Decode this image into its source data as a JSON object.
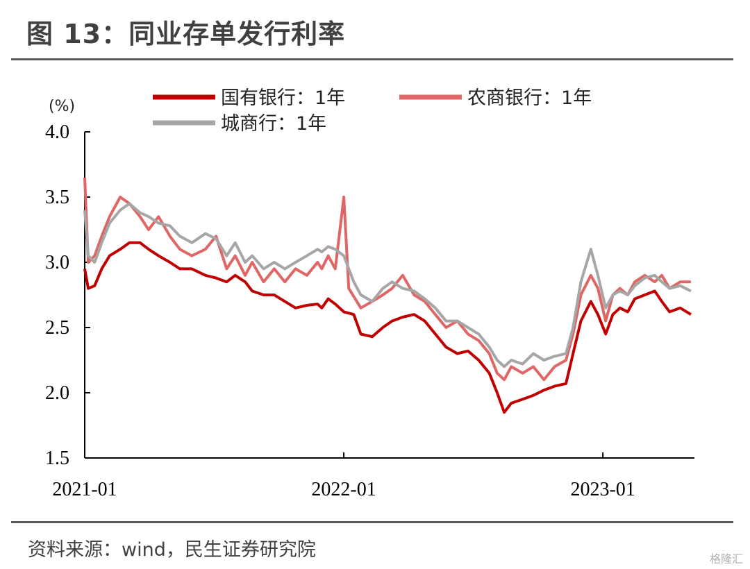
{
  "page": {
    "title": "图 13：同业存单发行利率",
    "source": "资料来源：wind，民生证券研究院",
    "watermark": "格隆汇"
  },
  "chart_data": {
    "type": "line",
    "title": "图 13：同业存单发行利率",
    "ylabel": "(%)",
    "xlabel": "",
    "ylim": [
      1.5,
      4.0
    ],
    "yticks": [
      1.5,
      2.0,
      2.5,
      3.0,
      3.5,
      4.0
    ],
    "ytick_labels": [
      "1.5",
      "2.0",
      "2.5",
      "3.0",
      "3.5",
      "4.0"
    ],
    "xlim": [
      "2021-01-01",
      "2023-05-10"
    ],
    "xticks": [
      "2021-01",
      "2022-01",
      "2023-01"
    ],
    "grid": false,
    "legend_position": "top",
    "series": [
      {
        "name": "国有银行：1年",
        "color": "#c00000",
        "points": [
          [
            "2021-01-01",
            2.95
          ],
          [
            "2021-01-06",
            2.8
          ],
          [
            "2021-01-15",
            2.82
          ],
          [
            "2021-01-25",
            2.95
          ],
          [
            "2021-02-05",
            3.05
          ],
          [
            "2021-02-20",
            3.1
          ],
          [
            "2021-03-05",
            3.15
          ],
          [
            "2021-03-20",
            3.15
          ],
          [
            "2021-04-01",
            3.1
          ],
          [
            "2021-04-15",
            3.05
          ],
          [
            "2021-05-01",
            3.0
          ],
          [
            "2021-05-15",
            2.95
          ],
          [
            "2021-06-01",
            2.95
          ],
          [
            "2021-06-20",
            2.9
          ],
          [
            "2021-07-05",
            2.88
          ],
          [
            "2021-07-20",
            2.85
          ],
          [
            "2021-08-01",
            2.9
          ],
          [
            "2021-08-15",
            2.85
          ],
          [
            "2021-08-25",
            2.78
          ],
          [
            "2021-09-10",
            2.75
          ],
          [
            "2021-09-25",
            2.75
          ],
          [
            "2021-10-10",
            2.7
          ],
          [
            "2021-10-25",
            2.65
          ],
          [
            "2021-11-10",
            2.67
          ],
          [
            "2021-11-25",
            2.68
          ],
          [
            "2021-12-01",
            2.65
          ],
          [
            "2021-12-10",
            2.72
          ],
          [
            "2021-12-20",
            2.68
          ],
          [
            "2022-01-01",
            2.62
          ],
          [
            "2022-01-15",
            2.6
          ],
          [
            "2022-01-25",
            2.45
          ],
          [
            "2022-02-10",
            2.43
          ],
          [
            "2022-02-25",
            2.5
          ],
          [
            "2022-03-10",
            2.55
          ],
          [
            "2022-03-25",
            2.58
          ],
          [
            "2022-04-10",
            2.6
          ],
          [
            "2022-04-25",
            2.55
          ],
          [
            "2022-05-10",
            2.45
          ],
          [
            "2022-05-25",
            2.35
          ],
          [
            "2022-06-10",
            2.3
          ],
          [
            "2022-06-25",
            2.32
          ],
          [
            "2022-07-10",
            2.25
          ],
          [
            "2022-07-25",
            2.15
          ],
          [
            "2022-08-05",
            2.0
          ],
          [
            "2022-08-15",
            1.85
          ],
          [
            "2022-08-25",
            1.92
          ],
          [
            "2022-09-10",
            1.95
          ],
          [
            "2022-09-25",
            1.98
          ],
          [
            "2022-10-10",
            2.02
          ],
          [
            "2022-10-25",
            2.05
          ],
          [
            "2022-11-10",
            2.07
          ],
          [
            "2022-11-20",
            2.3
          ],
          [
            "2022-12-01",
            2.55
          ],
          [
            "2022-12-15",
            2.7
          ],
          [
            "2022-12-25",
            2.6
          ],
          [
            "2023-01-05",
            2.45
          ],
          [
            "2023-01-15",
            2.6
          ],
          [
            "2023-01-25",
            2.65
          ],
          [
            "2023-02-05",
            2.62
          ],
          [
            "2023-02-15",
            2.72
          ],
          [
            "2023-03-01",
            2.75
          ],
          [
            "2023-03-15",
            2.78
          ],
          [
            "2023-03-25",
            2.7
          ],
          [
            "2023-04-05",
            2.62
          ],
          [
            "2023-04-20",
            2.65
          ],
          [
            "2023-05-05",
            2.6
          ]
        ]
      },
      {
        "name": "农商银行：1年",
        "color": "#e06666",
        "points": [
          [
            "2021-01-01",
            3.65
          ],
          [
            "2021-01-06",
            3.0
          ],
          [
            "2021-01-15",
            3.05
          ],
          [
            "2021-01-25",
            3.2
          ],
          [
            "2021-02-05",
            3.35
          ],
          [
            "2021-02-20",
            3.5
          ],
          [
            "2021-03-05",
            3.45
          ],
          [
            "2021-03-20",
            3.35
          ],
          [
            "2021-04-01",
            3.25
          ],
          [
            "2021-04-15",
            3.35
          ],
          [
            "2021-05-01",
            3.2
          ],
          [
            "2021-05-15",
            3.1
          ],
          [
            "2021-06-01",
            3.05
          ],
          [
            "2021-06-20",
            3.1
          ],
          [
            "2021-07-05",
            3.2
          ],
          [
            "2021-07-20",
            2.95
          ],
          [
            "2021-08-01",
            3.05
          ],
          [
            "2021-08-15",
            2.9
          ],
          [
            "2021-08-25",
            3.0
          ],
          [
            "2021-09-10",
            2.85
          ],
          [
            "2021-09-25",
            2.95
          ],
          [
            "2021-10-10",
            2.85
          ],
          [
            "2021-10-25",
            2.95
          ],
          [
            "2021-11-10",
            2.9
          ],
          [
            "2021-11-25",
            3.0
          ],
          [
            "2021-12-01",
            2.95
          ],
          [
            "2021-12-10",
            3.05
          ],
          [
            "2021-12-20",
            2.95
          ],
          [
            "2022-01-01",
            3.5
          ],
          [
            "2022-01-08",
            2.8
          ],
          [
            "2022-01-25",
            2.65
          ],
          [
            "2022-02-10",
            2.7
          ],
          [
            "2022-02-25",
            2.75
          ],
          [
            "2022-03-10",
            2.8
          ],
          [
            "2022-03-25",
            2.9
          ],
          [
            "2022-04-10",
            2.75
          ],
          [
            "2022-04-25",
            2.7
          ],
          [
            "2022-05-10",
            2.6
          ],
          [
            "2022-05-25",
            2.5
          ],
          [
            "2022-06-10",
            2.55
          ],
          [
            "2022-06-25",
            2.45
          ],
          [
            "2022-07-10",
            2.4
          ],
          [
            "2022-07-25",
            2.3
          ],
          [
            "2022-08-05",
            2.15
          ],
          [
            "2022-08-15",
            2.1
          ],
          [
            "2022-08-25",
            2.2
          ],
          [
            "2022-09-10",
            2.15
          ],
          [
            "2022-09-25",
            2.2
          ],
          [
            "2022-10-10",
            2.1
          ],
          [
            "2022-10-25",
            2.2
          ],
          [
            "2022-11-10",
            2.25
          ],
          [
            "2022-11-20",
            2.45
          ],
          [
            "2022-12-01",
            2.75
          ],
          [
            "2022-12-15",
            2.9
          ],
          [
            "2022-12-25",
            2.8
          ],
          [
            "2023-01-05",
            2.55
          ],
          [
            "2023-01-15",
            2.75
          ],
          [
            "2023-01-25",
            2.8
          ],
          [
            "2023-02-05",
            2.75
          ],
          [
            "2023-02-15",
            2.85
          ],
          [
            "2023-03-01",
            2.9
          ],
          [
            "2023-03-15",
            2.85
          ],
          [
            "2023-03-25",
            2.9
          ],
          [
            "2023-04-05",
            2.8
          ],
          [
            "2023-04-20",
            2.85
          ],
          [
            "2023-05-05",
            2.85
          ]
        ]
      },
      {
        "name": "城商行：1年",
        "color": "#a6a6a6",
        "points": [
          [
            "2021-01-01",
            3.4
          ],
          [
            "2021-01-06",
            3.05
          ],
          [
            "2021-01-15",
            3.0
          ],
          [
            "2021-01-25",
            3.15
          ],
          [
            "2021-02-05",
            3.3
          ],
          [
            "2021-02-20",
            3.4
          ],
          [
            "2021-03-05",
            3.45
          ],
          [
            "2021-03-20",
            3.38
          ],
          [
            "2021-04-01",
            3.35
          ],
          [
            "2021-04-15",
            3.3
          ],
          [
            "2021-05-01",
            3.28
          ],
          [
            "2021-05-15",
            3.2
          ],
          [
            "2021-06-01",
            3.15
          ],
          [
            "2021-06-20",
            3.22
          ],
          [
            "2021-07-05",
            3.18
          ],
          [
            "2021-07-20",
            3.05
          ],
          [
            "2021-08-01",
            3.15
          ],
          [
            "2021-08-15",
            3.0
          ],
          [
            "2021-08-25",
            3.05
          ],
          [
            "2021-09-10",
            2.95
          ],
          [
            "2021-09-25",
            3.0
          ],
          [
            "2021-10-10",
            2.95
          ],
          [
            "2021-10-25",
            3.0
          ],
          [
            "2021-11-10",
            3.05
          ],
          [
            "2021-11-25",
            3.1
          ],
          [
            "2021-12-01",
            3.08
          ],
          [
            "2021-12-10",
            3.12
          ],
          [
            "2021-12-20",
            3.1
          ],
          [
            "2022-01-01",
            3.05
          ],
          [
            "2022-01-15",
            2.85
          ],
          [
            "2022-01-25",
            2.75
          ],
          [
            "2022-02-10",
            2.7
          ],
          [
            "2022-02-25",
            2.8
          ],
          [
            "2022-03-10",
            2.85
          ],
          [
            "2022-03-25",
            2.8
          ],
          [
            "2022-04-10",
            2.78
          ],
          [
            "2022-04-25",
            2.72
          ],
          [
            "2022-05-10",
            2.65
          ],
          [
            "2022-05-25",
            2.55
          ],
          [
            "2022-06-10",
            2.55
          ],
          [
            "2022-06-25",
            2.5
          ],
          [
            "2022-07-10",
            2.45
          ],
          [
            "2022-07-25",
            2.35
          ],
          [
            "2022-08-05",
            2.25
          ],
          [
            "2022-08-15",
            2.2
          ],
          [
            "2022-08-25",
            2.25
          ],
          [
            "2022-09-10",
            2.22
          ],
          [
            "2022-09-25",
            2.3
          ],
          [
            "2022-10-10",
            2.25
          ],
          [
            "2022-10-25",
            2.28
          ],
          [
            "2022-11-10",
            2.3
          ],
          [
            "2022-11-20",
            2.5
          ],
          [
            "2022-12-01",
            2.85
          ],
          [
            "2022-12-15",
            3.1
          ],
          [
            "2022-12-25",
            2.9
          ],
          [
            "2023-01-05",
            2.65
          ],
          [
            "2023-01-15",
            2.75
          ],
          [
            "2023-01-25",
            2.78
          ],
          [
            "2023-02-05",
            2.75
          ],
          [
            "2023-02-15",
            2.82
          ],
          [
            "2023-03-01",
            2.88
          ],
          [
            "2023-03-15",
            2.9
          ],
          [
            "2023-03-25",
            2.85
          ],
          [
            "2023-04-05",
            2.8
          ],
          [
            "2023-04-20",
            2.82
          ],
          [
            "2023-05-05",
            2.78
          ]
        ]
      }
    ]
  }
}
